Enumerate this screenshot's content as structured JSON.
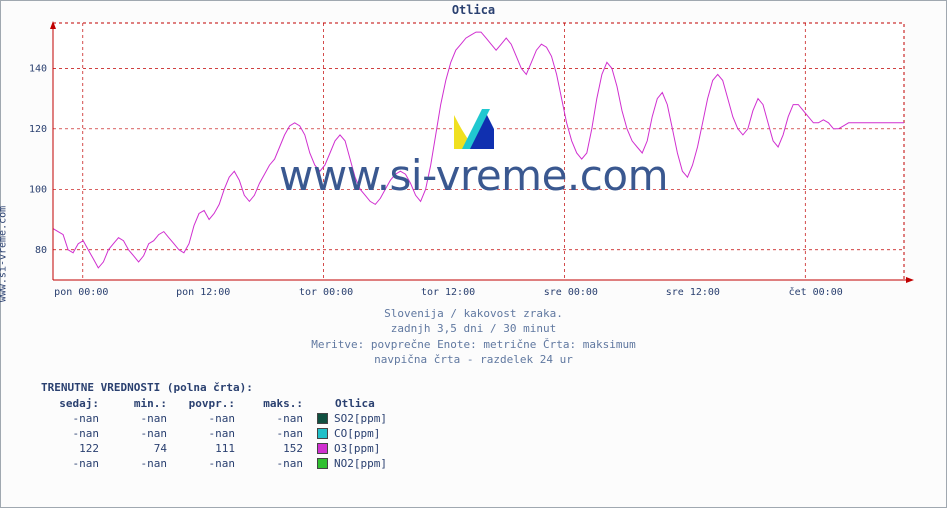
{
  "title": "Otlica",
  "side_label": "www.si-vreme.com",
  "watermark_text": "www.si-vreme.com",
  "subtitle_lines": [
    "Slovenija / kakovost zraka.",
    "zadnjh 3,5 dni / 30 minut",
    "Meritve: povprečne  Enote: metrične  Črta: maksimum",
    "navpična črta - razdelek 24 ur"
  ],
  "chart": {
    "type": "line",
    "background_color": "#ffffff",
    "border_color": "#c00000",
    "grid_color": "#c00000",
    "line_color": "#d030d0",
    "line_width": 1,
    "axis_arrow_color": "#c00000",
    "ylim": [
      70,
      155
    ],
    "yticks": [
      80,
      100,
      120,
      140
    ],
    "xticks": [
      {
        "pos": 0.035,
        "label": "pon 00:00"
      },
      {
        "pos": 0.176,
        "label": "pon 12:00"
      },
      {
        "pos": 0.318,
        "label": "tor 00:00"
      },
      {
        "pos": 0.459,
        "label": "tor 12:00"
      },
      {
        "pos": 0.601,
        "label": "sre 00:00"
      },
      {
        "pos": 0.742,
        "label": "sre 12:00"
      },
      {
        "pos": 0.884,
        "label": "čet 00:00"
      }
    ],
    "vlines": [
      0.035,
      0.318,
      0.601,
      0.884
    ],
    "series": [
      87,
      86,
      85,
      80,
      79,
      82,
      83,
      80,
      77,
      74,
      76,
      80,
      82,
      84,
      83,
      80,
      78,
      76,
      78,
      82,
      83,
      85,
      86,
      84,
      82,
      80,
      79,
      82,
      88,
      92,
      93,
      90,
      92,
      95,
      100,
      104,
      106,
      103,
      98,
      96,
      98,
      102,
      105,
      108,
      110,
      114,
      118,
      121,
      122,
      121,
      118,
      112,
      108,
      106,
      108,
      112,
      116,
      118,
      116,
      110,
      104,
      100,
      98,
      96,
      95,
      97,
      100,
      103,
      105,
      106,
      105,
      102,
      98,
      96,
      100,
      108,
      118,
      128,
      136,
      142,
      146,
      148,
      150,
      151,
      152,
      152,
      150,
      148,
      146,
      148,
      150,
      148,
      144,
      140,
      138,
      142,
      146,
      148,
      147,
      144,
      138,
      130,
      122,
      116,
      112,
      110,
      112,
      120,
      130,
      138,
      142,
      140,
      134,
      126,
      120,
      116,
      114,
      112,
      116,
      124,
      130,
      132,
      128,
      120,
      112,
      106,
      104,
      108,
      114,
      122,
      130,
      136,
      138,
      136,
      130,
      124,
      120,
      118,
      120,
      126,
      130,
      128,
      122,
      116,
      114,
      118,
      124,
      128,
      128,
      126,
      124,
      122,
      122,
      123,
      122,
      120,
      120,
      121,
      122,
      122,
      122,
      122,
      122,
      122,
      122,
      122,
      122,
      122,
      122,
      122
    ]
  },
  "table": {
    "title": "TRENUTNE VREDNOSTI (polna črta):",
    "headers": [
      "sedaj:",
      "min.:",
      "povpr.:",
      "maks.:",
      "Otlica"
    ],
    "rows": [
      {
        "vals": [
          "-nan",
          "-nan",
          "-nan",
          "-nan"
        ],
        "swatch": "#105040",
        "label": "SO2[ppm]"
      },
      {
        "vals": [
          "-nan",
          "-nan",
          "-nan",
          "-nan"
        ],
        "swatch": "#20c0c8",
        "label": "CO[ppm]"
      },
      {
        "vals": [
          "122",
          "74",
          "111",
          "152"
        ],
        "swatch": "#d030d0",
        "label": "O3[ppm]"
      },
      {
        "vals": [
          "-nan",
          "-nan",
          "-nan",
          "-nan"
        ],
        "swatch": "#30c030",
        "label": "NO2[ppm]"
      }
    ]
  },
  "logo_colors": {
    "a": "#f0e020",
    "b": "#20c8d0",
    "c": "#1030b0",
    "bg": "#ffffff"
  }
}
